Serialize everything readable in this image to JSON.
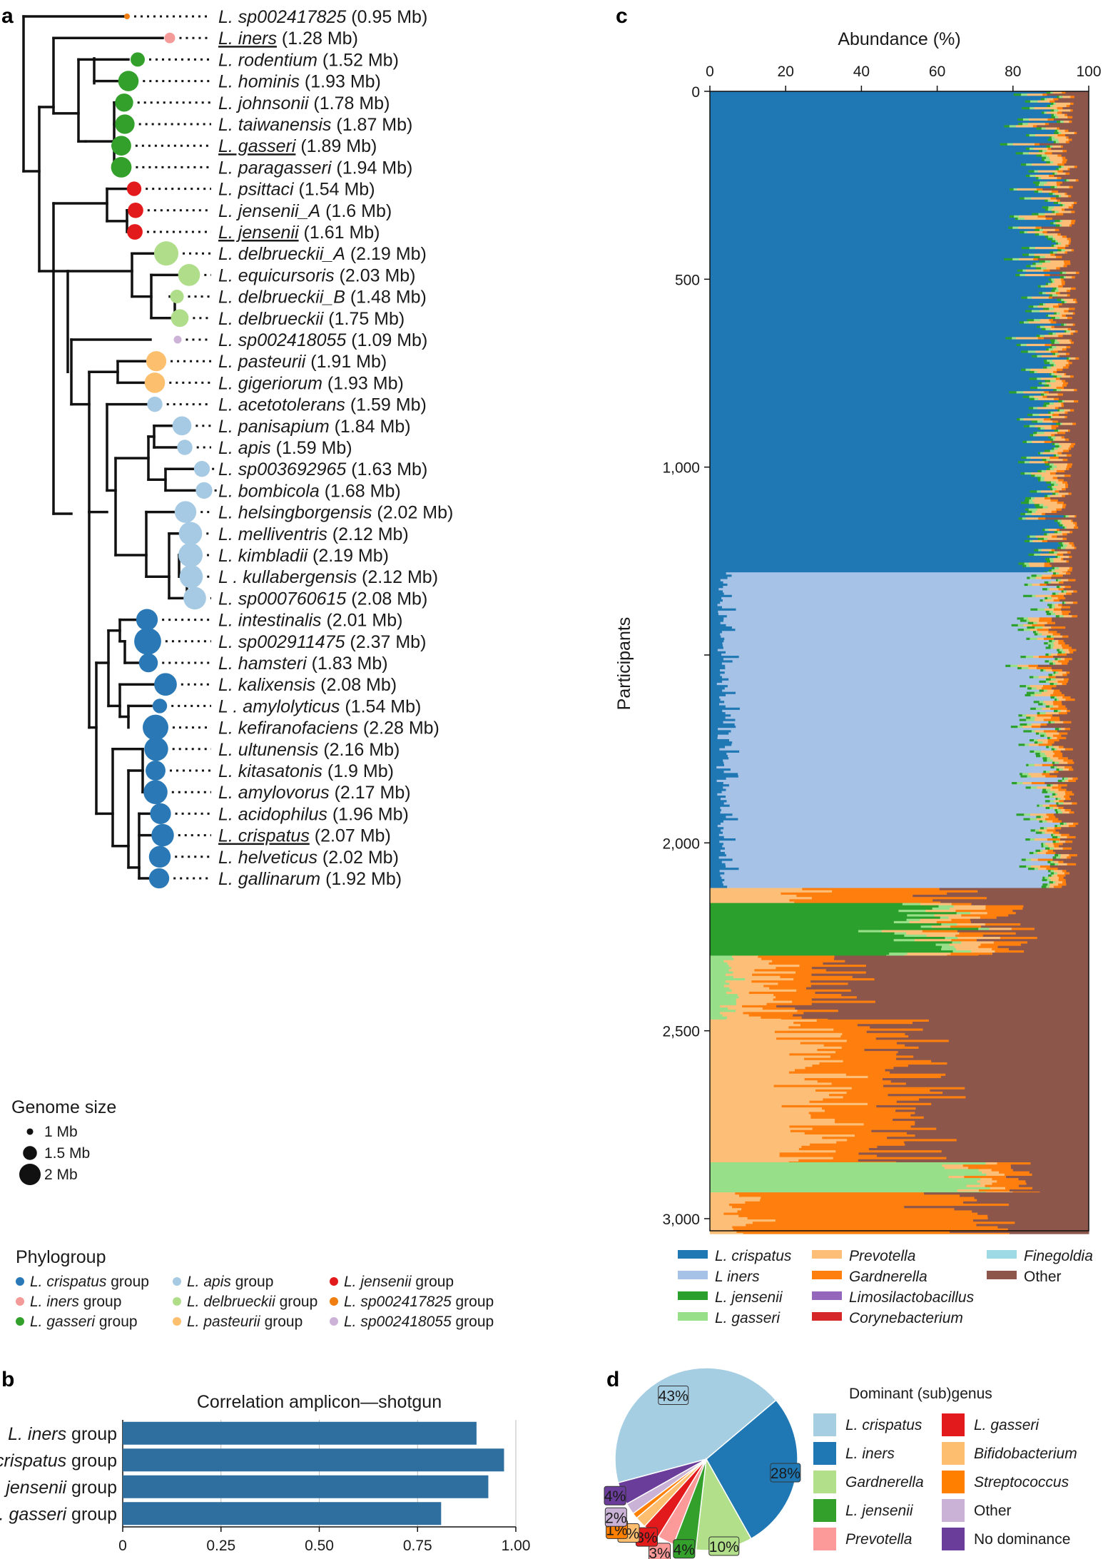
{
  "panels": {
    "a": "a",
    "b": "b",
    "c": "c",
    "d": "d"
  },
  "tree": {
    "taxa": [
      {
        "genus": "L.",
        "species": "sp002417825",
        "size_label": "(0.95 Mb)",
        "genome_mb": 0.95,
        "group": "sp002417825",
        "underline": false
      },
      {
        "genus": "L.",
        "species": "iners",
        "size_label": "(1.28 Mb)",
        "genome_mb": 1.28,
        "group": "iners",
        "underline": true
      },
      {
        "genus": "L.",
        "species": "rodentium",
        "size_label": "(1.52 Mb)",
        "genome_mb": 1.52,
        "group": "gasseri",
        "underline": false
      },
      {
        "genus": "L.",
        "species": "hominis",
        "size_label": "(1.93 Mb)",
        "genome_mb": 1.93,
        "group": "gasseri",
        "underline": false
      },
      {
        "genus": "L.",
        "species": "johnsonii",
        "size_label": "(1.78 Mb)",
        "genome_mb": 1.78,
        "group": "gasseri",
        "underline": false
      },
      {
        "genus": "L.",
        "species": "taiwanensis",
        "size_label": "(1.87 Mb)",
        "genome_mb": 1.87,
        "group": "gasseri",
        "underline": false
      },
      {
        "genus": "L.",
        "species": "gasseri",
        "size_label": "(1.89 Mb)",
        "genome_mb": 1.89,
        "group": "gasseri",
        "underline": true
      },
      {
        "genus": "L.",
        "species": "paragasseri",
        "size_label": "(1.94 Mb)",
        "genome_mb": 1.94,
        "group": "gasseri",
        "underline": false
      },
      {
        "genus": "L.",
        "species": "psittaci",
        "size_label": "(1.54 Mb)",
        "genome_mb": 1.54,
        "group": "jensenii",
        "underline": false
      },
      {
        "genus": "L.",
        "species": "jensenii_A",
        "size_label": "(1.6 Mb)",
        "genome_mb": 1.6,
        "group": "jensenii",
        "underline": false
      },
      {
        "genus": "L.",
        "species": "jensenii",
        "size_label": "(1.61 Mb)",
        "genome_mb": 1.61,
        "group": "jensenii",
        "underline": true
      },
      {
        "genus": "L.",
        "species": "delbrueckii_A",
        "size_label": "(2.19 Mb)",
        "genome_mb": 2.19,
        "group": "delbrueckii",
        "underline": false
      },
      {
        "genus": "L.",
        "species": "equicursoris",
        "size_label": "(2.03 Mb)",
        "genome_mb": 2.03,
        "group": "delbrueckii",
        "underline": false
      },
      {
        "genus": "L.",
        "species": "delbrueckii_B",
        "size_label": "(1.48 Mb)",
        "genome_mb": 1.48,
        "group": "delbrueckii",
        "underline": false
      },
      {
        "genus": "L.",
        "species": "delbrueckii",
        "size_label": "(1.75 Mb)",
        "genome_mb": 1.75,
        "group": "delbrueckii",
        "underline": false
      },
      {
        "genus": "L.",
        "species": "sp002418055",
        "size_label": "(1.09 Mb)",
        "genome_mb": 1.09,
        "group": "sp002418055",
        "underline": false
      },
      {
        "genus": "L.",
        "species": "pasteurii",
        "size_label": "(1.91 Mb)",
        "genome_mb": 1.91,
        "group": "pasteurii",
        "underline": false
      },
      {
        "genus": "L.",
        "species": "gigeriorum",
        "size_label": "(1.93 Mb)",
        "genome_mb": 1.93,
        "group": "pasteurii",
        "underline": false
      },
      {
        "genus": "L.",
        "species": "acetotolerans",
        "size_label": "(1.59 Mb)",
        "genome_mb": 1.59,
        "group": "apis",
        "underline": false
      },
      {
        "genus": "L.",
        "species": "panisapium",
        "size_label": "(1.84 Mb)",
        "genome_mb": 1.84,
        "group": "apis",
        "underline": false
      },
      {
        "genus": "L.",
        "species": "apis",
        "size_label": "(1.59 Mb)",
        "genome_mb": 1.59,
        "group": "apis",
        "underline": false
      },
      {
        "genus": "L.",
        "species": "sp003692965",
        "size_label": "(1.63 Mb)",
        "genome_mb": 1.63,
        "group": "apis",
        "underline": false
      },
      {
        "genus": "L.",
        "species": "bombicola",
        "size_label": "(1.68 Mb)",
        "genome_mb": 1.68,
        "group": "apis",
        "underline": false
      },
      {
        "genus": "L.",
        "species": "helsingborgensis",
        "size_label": "(2.02 Mb)",
        "genome_mb": 2.02,
        "group": "apis",
        "underline": false
      },
      {
        "genus": "L.",
        "species": "melliventris",
        "size_label": "(2.12 Mb)",
        "genome_mb": 2.12,
        "group": "apis",
        "underline": false
      },
      {
        "genus": "L.",
        "species": "kimbladii",
        "size_label": "(2.19 Mb)",
        "genome_mb": 2.19,
        "group": "apis",
        "underline": false
      },
      {
        "genus": "L .",
        "species": "kullabergensis",
        "size_label": "(2.12 Mb)",
        "genome_mb": 2.12,
        "group": "apis",
        "underline": false
      },
      {
        "genus": "L.",
        "species": "sp000760615",
        "size_label": "(2.08 Mb)",
        "genome_mb": 2.08,
        "group": "apis",
        "underline": false
      },
      {
        "genus": "L.",
        "species": "intestinalis",
        "size_label": "(2.01 Mb)",
        "genome_mb": 2.01,
        "group": "crispatus",
        "underline": false
      },
      {
        "genus": "L.",
        "species": "sp002911475",
        "size_label": "(2.37 Mb)",
        "genome_mb": 2.37,
        "group": "crispatus",
        "underline": false
      },
      {
        "genus": "L.",
        "species": "hamsteri",
        "size_label": "(1.83 Mb)",
        "genome_mb": 1.83,
        "group": "crispatus",
        "underline": false
      },
      {
        "genus": "L.",
        "species": "kalixensis",
        "size_label": "(2.08 Mb)",
        "genome_mb": 2.08,
        "group": "crispatus",
        "underline": false
      },
      {
        "genus": "L .",
        "species": "amylolyticus",
        "size_label": "(1.54 Mb)",
        "genome_mb": 1.54,
        "group": "crispatus",
        "underline": false
      },
      {
        "genus": "L.",
        "species": "kefiranofaciens",
        "size_label": "(2.28 Mb)",
        "genome_mb": 2.28,
        "group": "crispatus",
        "underline": false
      },
      {
        "genus": "L.",
        "species": "ultunensis",
        "size_label": "(2.16 Mb)",
        "genome_mb": 2.16,
        "group": "crispatus",
        "underline": false
      },
      {
        "genus": "L.",
        "species": "kitasatonis",
        "size_label": "(1.9 Mb)",
        "genome_mb": 1.9,
        "group": "crispatus",
        "underline": false
      },
      {
        "genus": "L.",
        "species": "amylovorus",
        "size_label": "(2.17 Mb)",
        "genome_mb": 2.17,
        "group": "crispatus",
        "underline": false
      },
      {
        "genus": "L.",
        "species": "acidophilus",
        "size_label": "(1.96 Mb)",
        "genome_mb": 1.96,
        "group": "crispatus",
        "underline": false
      },
      {
        "genus": "L.",
        "species": "crispatus",
        "size_label": "(2.07 Mb)",
        "genome_mb": 2.07,
        "group": "crispatus",
        "underline": true
      },
      {
        "genus": "L.",
        "species": "helveticus",
        "size_label": "(2.02 Mb)",
        "genome_mb": 2.02,
        "group": "crispatus",
        "underline": false
      },
      {
        "genus": "L.",
        "species": "gallinarum",
        "size_label": "(1.92 Mb)",
        "genome_mb": 1.92,
        "group": "crispatus",
        "underline": false
      }
    ],
    "group_colors": {
      "crispatus": "#2a79b6",
      "iners": "#f49a98",
      "gasseri": "#33a02c",
      "apis": "#a6cae3",
      "delbrueckii": "#b0dd8a",
      "pasteurii": "#fcbf6e",
      "jensenii": "#e31a1c",
      "sp002417825": "#f07e10",
      "sp002418055": "#cbb2d6"
    },
    "size_legend": {
      "title": "Genome size",
      "items": [
        {
          "label": "1 Mb",
          "mb": 1.0
        },
        {
          "label": "1.5 Mb",
          "mb": 1.5
        },
        {
          "label": "2 Mb",
          "mb": 2.0
        }
      ]
    },
    "phylogroup_legend": {
      "title": "Phylogroup",
      "items": [
        {
          "italic": "L. crispatus",
          "rest": " group",
          "group": "crispatus"
        },
        {
          "italic": "L. iners",
          "rest": " group",
          "group": "iners"
        },
        {
          "italic": "L. gasseri",
          "rest": " group",
          "group": "gasseri"
        },
        {
          "italic": "L. apis",
          "rest": " group",
          "group": "apis"
        },
        {
          "italic": "L. delbrueckii",
          "rest": " group",
          "group": "delbrueckii"
        },
        {
          "italic": "L. pasteurii",
          "rest": " group",
          "group": "pasteurii"
        },
        {
          "italic": "L. jensenii",
          "rest": " group",
          "group": "jensenii"
        },
        {
          "italic": "L. sp002417825",
          "rest": " group",
          "group": "sp002417825"
        },
        {
          "italic": "L. sp002418055",
          "rest": " group",
          "group": "sp002418055"
        }
      ]
    }
  },
  "chart_data": [
    {
      "type": "bar",
      "orientation": "horizontal",
      "title": "Correlation amplicon—shotgun",
      "categories": [
        {
          "italic": "L. iners",
          "rest": " group"
        },
        {
          "italic": "L. crispatus",
          "rest": " group"
        },
        {
          "italic": "L. jensenii",
          "rest": " group"
        },
        {
          "italic": "L. gasseri",
          "rest": " group"
        }
      ],
      "values": [
        0.9,
        0.97,
        0.93,
        0.81
      ],
      "xlim": [
        0,
        1.0
      ],
      "xticks": [
        "0",
        "0.25",
        "0.50",
        "0.75",
        "1.00"
      ],
      "xtick_values": [
        0,
        0.25,
        0.5,
        0.75,
        1.0
      ],
      "grid": true,
      "bar_color": "#2f6f9f"
    },
    {
      "type": "area",
      "subtype": "stacked-100-percent",
      "title": "",
      "xlabel": "Abundance (%)",
      "ylabel": "Participants",
      "xlim": [
        0,
        100
      ],
      "xticks": [
        "0",
        "20",
        "40",
        "60",
        "80",
        "100"
      ],
      "ylim": [
        0,
        3000
      ],
      "yticks": [
        "0",
        "500",
        "1,000",
        "",
        "2,000",
        "2,500",
        "3,000"
      ],
      "ytick_values": [
        0,
        500,
        1000,
        1500,
        2000,
        2500,
        3000
      ],
      "series": [
        {
          "name": "L. crispatus",
          "italic": true,
          "color": "#1f78b4"
        },
        {
          "name": "L iners",
          "italic": true,
          "color": "#a6c2e6"
        },
        {
          "name": "L. jensenii",
          "italic": true,
          "color": "#2ca02c"
        },
        {
          "name": "L. gasseri",
          "italic": true,
          "color": "#98df8a"
        },
        {
          "name": "Prevotella",
          "italic": true,
          "color": "#fdbf78"
        },
        {
          "name": "Gardnerella",
          "italic": true,
          "color": "#ff7f0e"
        },
        {
          "name": "Limosilactobacillus",
          "italic": true,
          "color": "#9467bd"
        },
        {
          "name": "Corynebacterium",
          "italic": true,
          "color": "#d62728"
        },
        {
          "name": "Finegoldia",
          "italic": true,
          "color": "#9edae5"
        },
        {
          "name": "Other",
          "italic": false,
          "color": "#8c564b"
        }
      ],
      "segments": [
        {
          "from": 0,
          "to": 1280,
          "dominant": "L. crispatus",
          "approx_percent": {
            "L. crispatus": 88,
            "Prevotella": 3,
            "Other": 6,
            "L. jensenii": 1,
            "L. gasseri": 1,
            "Gardnerella": 1
          }
        },
        {
          "from": 1280,
          "to": 2120,
          "dominant": "L iners",
          "approx_percent": {
            "L. crispatus": 4,
            "L iners": 84,
            "Prevotella": 2,
            "Gardnerella": 2,
            "Other": 6,
            "L. gasseri": 1,
            "L. jensenii": 1
          }
        },
        {
          "from": 2120,
          "to": 2160,
          "dominant": "Gardnerella",
          "approx_percent": {
            "Prevotella": 20,
            "Gardnerella": 45,
            "Other": 35
          }
        },
        {
          "from": 2160,
          "to": 2300,
          "dominant": "L. jensenii",
          "approx_percent": {
            "Prevotella": 8,
            "Gardnerella": 8,
            "L. jensenii": 58,
            "L. gasseri": 4,
            "Other": 22
          }
        },
        {
          "from": 2300,
          "to": 2470,
          "dominant": "Other",
          "approx_percent": {
            "Prevotella": 10,
            "Gardnerella": 15,
            "L. gasseri": 5,
            "Other": 70
          }
        },
        {
          "from": 2470,
          "to": 2850,
          "dominant": "Prevotella/Gardnerella",
          "approx_percent": {
            "Prevotella": 28,
            "Gardnerella": 22,
            "Other": 50
          }
        },
        {
          "from": 2850,
          "to": 2930,
          "dominant": "L. gasseri",
          "approx_percent": {
            "Prevotella": 5,
            "Gardnerella": 8,
            "L. gasseri": 72,
            "Other": 15
          }
        },
        {
          "from": 2930,
          "to": 3040,
          "dominant": "Gardnerella",
          "approx_percent": {
            "Prevotella": 8,
            "Gardnerella": 62,
            "Other": 30
          }
        }
      ]
    },
    {
      "type": "pie",
      "title": "Dominant (sub)genus",
      "slices": [
        {
          "label": "L. crispatus",
          "italic": true,
          "value": 43,
          "pct_label": "43%",
          "color": "#a6cee3"
        },
        {
          "label": "L. iners",
          "italic": true,
          "value": 28,
          "pct_label": "28%",
          "color": "#1f78b4"
        },
        {
          "label": "Gardnerella",
          "italic": true,
          "value": 10,
          "pct_label": "10%",
          "color": "#b2df8a"
        },
        {
          "label": "L. jensenii",
          "italic": true,
          "value": 4,
          "pct_label": "4%",
          "color": "#33a02c"
        },
        {
          "label": "Prevotella",
          "italic": true,
          "value": 3,
          "pct_label": "3%",
          "color": "#fb9a99"
        },
        {
          "label": "L. gasseri",
          "italic": true,
          "value": 3,
          "pct_label": "3%",
          "color": "#e31a1c"
        },
        {
          "label": "Bifidobacterium",
          "italic": true,
          "value": 2,
          "pct_label": "2%",
          "color": "#fdbf6f"
        },
        {
          "label": "Streptococcus",
          "italic": true,
          "value": 1,
          "pct_label": "1%",
          "color": "#ff7f00"
        },
        {
          "label": "Other",
          "italic": false,
          "value": 2,
          "pct_label": "2%",
          "color": "#cab2d6"
        },
        {
          "label": "No dominance",
          "italic": false,
          "value": 4,
          "pct_label": "4%",
          "color": "#6a3d9a"
        }
      ],
      "legend_order": [
        "L. crispatus",
        "L. iners",
        "Gardnerella",
        "L. jensenii",
        "Prevotella",
        "L. gasseri",
        "Bifidobacterium",
        "Streptococcus",
        "Other",
        "No dominance"
      ]
    }
  ]
}
